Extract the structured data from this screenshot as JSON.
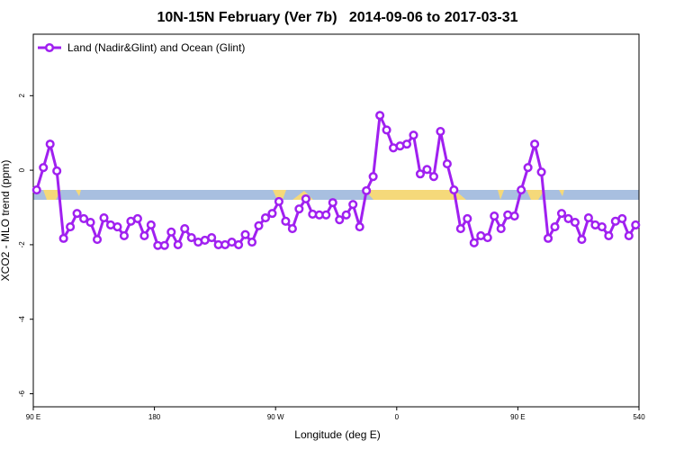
{
  "chart_data": {
    "type": "line",
    "title": "10N-15N February (Ver 7b)   2014-09-06 to 2017-03-31",
    "x_label": "Longitude (deg E)",
    "y_label": "XCO2 - MLO trend (ppm)",
    "xlim": [
      90,
      540
    ],
    "ylim": [
      -6.35,
      3.65
    ],
    "xticks": [
      {
        "value": 90,
        "label": "90 E"
      },
      180,
      {
        "value": 270,
        "label": "90 W"
      },
      {
        "value": 360,
        "label": "0"
      },
      {
        "value": 450,
        "label": "90 E"
      },
      540
    ],
    "yticks": [
      -6,
      -4,
      -2,
      0,
      2
    ],
    "legend": "top-left",
    "x": [
      92.5,
      97.5,
      102.5,
      107.5,
      112.5,
      117.5,
      122.5,
      127.5,
      132.5,
      137.5,
      142.5,
      147.5,
      152.5,
      157.5,
      162.5,
      167.5,
      172.5,
      177.5,
      182.5,
      187.5,
      192.5,
      197.5,
      202.5,
      207.5,
      212.5,
      217.5,
      222.5,
      227.5,
      232.5,
      237.5,
      242.5,
      247.5,
      252.5,
      257.5,
      262.5,
      267.5,
      272.5,
      277.5,
      282.5,
      287.5,
      292.5,
      297.5,
      302.5,
      307.5,
      312.5,
      317.5,
      322.5,
      327.5,
      332.5,
      337.5,
      342.5,
      347.5,
      352.5,
      357.5,
      362.5,
      367.5,
      372.5,
      377.5,
      382.5,
      387.5,
      392.5,
      397.5,
      402.5,
      407.5,
      412.5,
      417.5,
      422.5,
      427.5,
      432.5,
      437.5,
      442.5,
      447.5,
      452.5,
      457.5,
      462.5,
      467.5,
      472.5,
      477.5,
      482.5,
      487.5,
      492.5,
      497.5,
      502.5,
      507.5,
      512.5,
      517.5,
      522.5,
      527.5,
      532.5,
      537.5
    ],
    "series": [
      {
        "name": "Land (Nadir&Glint) and Ocean (Glint)",
        "color": "#a020f0",
        "values": [
          -0.53,
          0.07,
          0.7,
          -0.02,
          -1.83,
          -1.52,
          -1.16,
          -1.3,
          -1.4,
          -1.86,
          -1.28,
          -1.47,
          -1.52,
          -1.76,
          -1.37,
          -1.3,
          -1.76,
          -1.47,
          -2.02,
          -2.02,
          -1.66,
          -2.0,
          -1.57,
          -1.81,
          -1.93,
          -1.88,
          -1.81,
          -2.0,
          -2.0,
          -1.93,
          -2.0,
          -1.73,
          -1.93,
          -1.49,
          -1.28,
          -1.16,
          -0.84,
          -1.37,
          -1.57,
          -1.04,
          -0.77,
          -1.18,
          -1.2,
          -1.2,
          -0.87,
          -1.33,
          -1.2,
          -0.92,
          -1.52,
          -0.55,
          -0.17,
          1.47,
          1.08,
          0.6,
          0.65,
          0.7,
          0.94,
          -0.1,
          0.02,
          -0.17,
          1.04,
          0.17,
          -0.53,
          -1.57,
          -1.3,
          -1.95,
          -1.76,
          -1.81,
          -1.23,
          -1.57,
          -1.2,
          -1.23,
          -0.53,
          0.07,
          0.7,
          -0.05,
          -1.83,
          -1.52,
          -1.16,
          -1.3,
          -1.4,
          -1.86,
          -1.28,
          -1.47,
          -1.52,
          -1.76,
          -1.37,
          -1.3,
          -1.76,
          -1.47
        ]
      }
    ]
  }
}
